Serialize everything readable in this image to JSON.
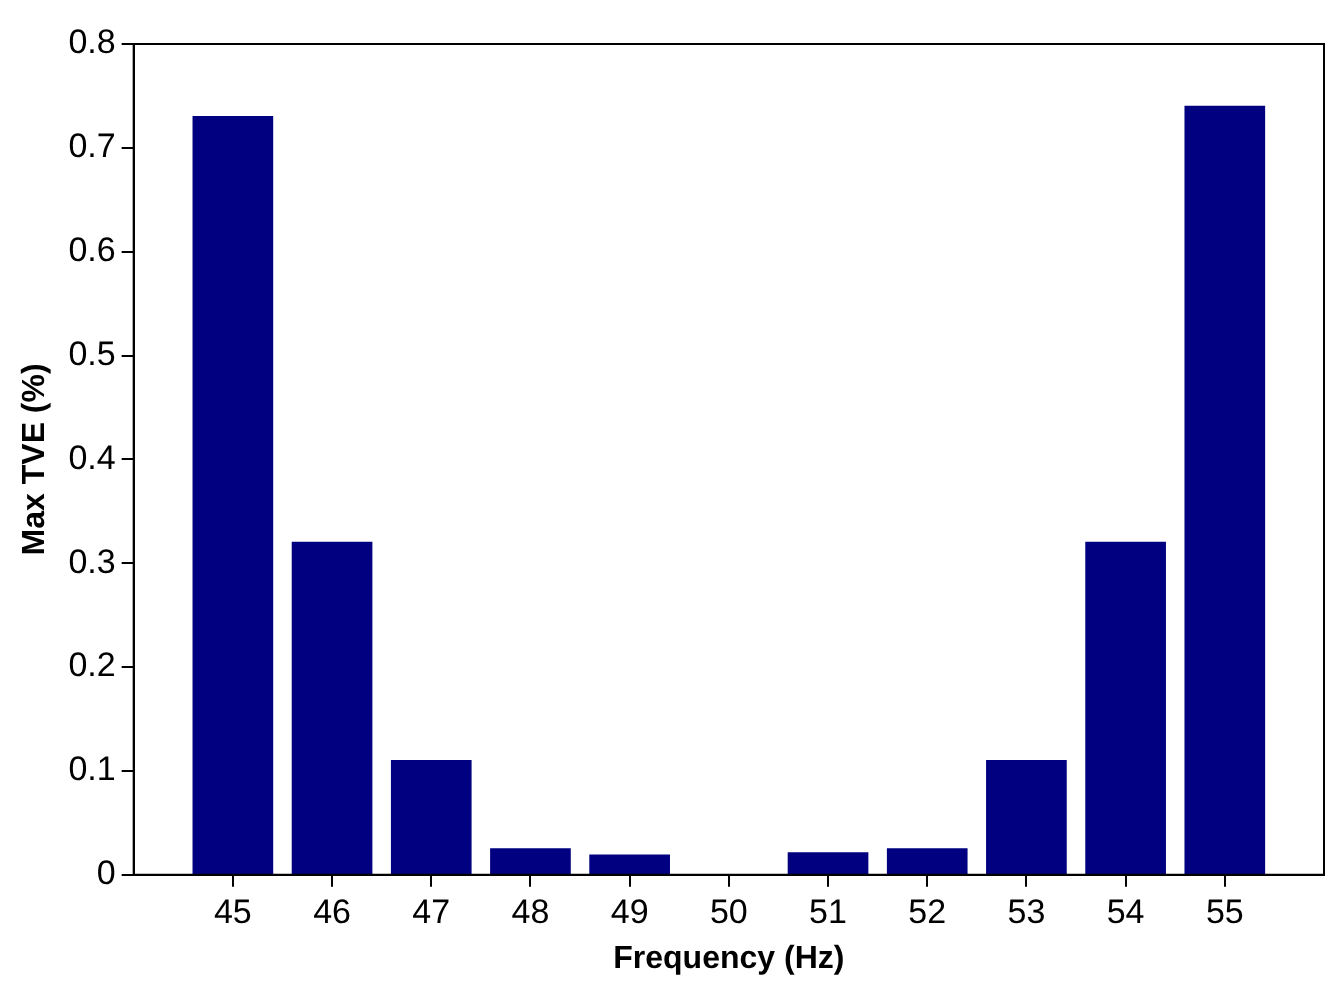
{
  "chart_data": {
    "type": "bar",
    "xlabel": "Frequency (Hz)",
    "ylabel": "Max TVE (%)",
    "x": [
      45,
      46,
      47,
      48,
      49,
      50,
      51,
      52,
      53,
      54,
      55
    ],
    "values": [
      0.73,
      0.32,
      0.11,
      0.025,
      0.019,
      0,
      0.021,
      0.025,
      0.11,
      0.32,
      0.74
    ],
    "color": "#000080",
    "xlim": [
      44,
      56
    ],
    "xticks": [
      45,
      46,
      47,
      48,
      49,
      50,
      51,
      52,
      53,
      54,
      55
    ],
    "ylim": [
      0,
      0.8
    ],
    "yticks": [
      0,
      0.1,
      0.2,
      0.3,
      0.4,
      0.5,
      0.6,
      0.7,
      0.8
    ],
    "grid": false,
    "legend": false
  }
}
